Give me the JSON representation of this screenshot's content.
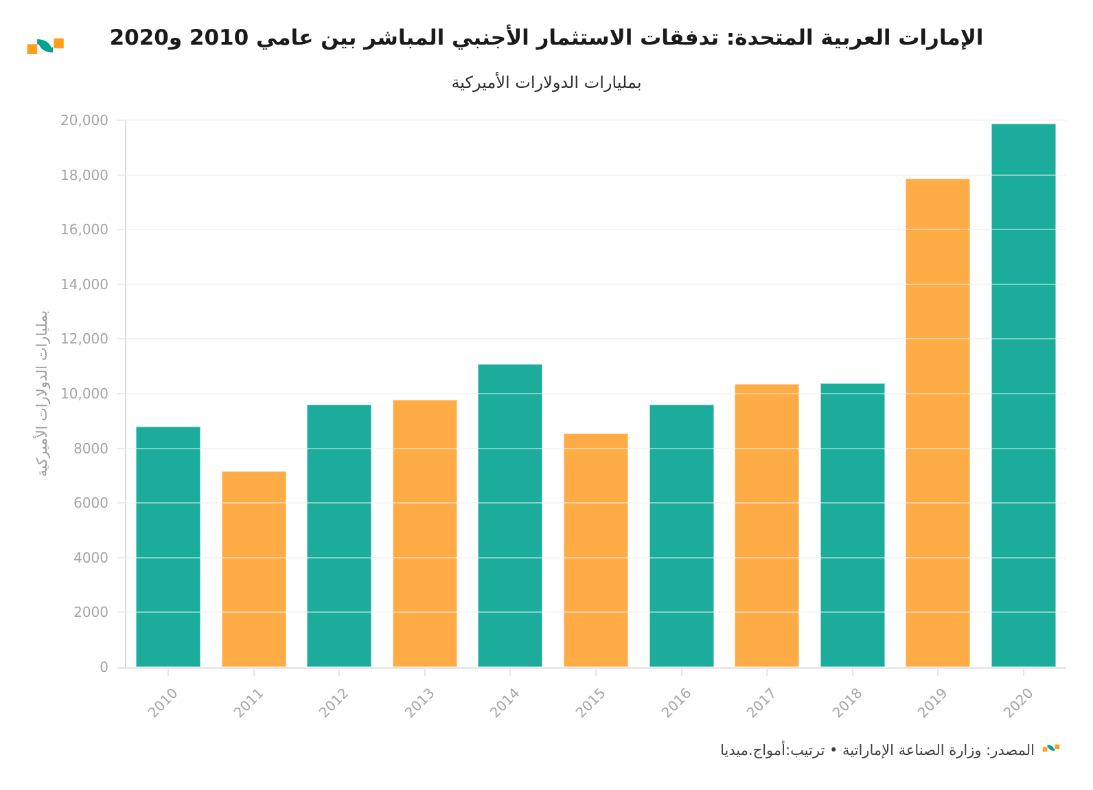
{
  "header": {
    "title": "الإمارات العربية المتحدة: تدفقات الاستثمار الأجنبي المباشر بين عامي 2010 و2020",
    "subtitle": "بمليارات الدولارات الأميركية"
  },
  "chart_data": {
    "type": "bar",
    "title": "الإمارات العربية المتحدة: تدفقات الاستثمار الأجنبي المباشر بين عامي 2010 و2020",
    "subtitle": "بمليارات الدولارات الأميركية",
    "categories": [
      "2010",
      "2011",
      "2012",
      "2013",
      "2014",
      "2015",
      "2016",
      "2017",
      "2018",
      "2019",
      "2020"
    ],
    "values": [
      8797,
      7152,
      9602,
      9765,
      11072,
      8551,
      9605,
      10354,
      10385,
      17875,
      19884
    ],
    "bar_colors": [
      "#1CAC9C",
      "#FFAC47",
      "#1CAC9C",
      "#FFAC47",
      "#1CAC9C",
      "#FFAC47",
      "#1CAC9C",
      "#FFAC47",
      "#1CAC9C",
      "#FFAC47",
      "#1CAC9C"
    ],
    "xlabel": "",
    "ylabel": "بمليارات الدولارات الأميركية",
    "ylim": [
      0,
      20000
    ],
    "ytick_interval": 2000,
    "ytick_labels": [
      "0",
      "2000",
      "4000",
      "6000",
      "8000",
      "10,000",
      "12,000",
      "14,000",
      "16,000",
      "18,000",
      "20,000"
    ],
    "grid": "horizontal",
    "legend": "none"
  },
  "footer": {
    "source": "المصدر: وزارة الصناعة الإماراتية • ترتيب:أمواج.ميديا"
  },
  "icons": {
    "logo": "amwaj-media-wave-logo"
  },
  "colors": {
    "teal": "#1CAC9C",
    "orange": "#FFAC47",
    "logo_teal": "#00A391",
    "logo_orange": "#FF9E1B",
    "grid": "#EDEDED",
    "grid_overlay": "rgba(255,255,255,0.45)",
    "baseline": "#E9E9E9",
    "axis_line": "#D9D9D9",
    "tick": "#E7E7E7",
    "tick_label": "#A4A4A4",
    "title_text": "#1A1A1A",
    "subtitle_text": "#2E2E2E",
    "source_text": "#3F3F3F",
    "background": "#FFFFFF"
  }
}
